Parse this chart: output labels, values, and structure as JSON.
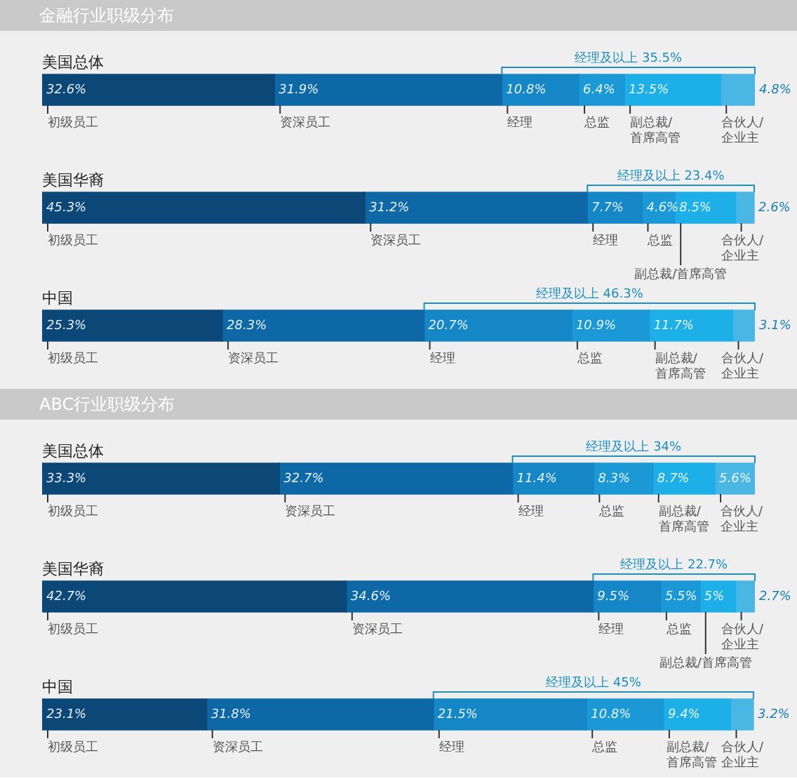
{
  "chart_data": [
    {
      "type": "bar",
      "title": "金融行业职级分布",
      "orientation": "horizontal",
      "stacked": true,
      "legend": false,
      "tick_labels": false,
      "categories": [
        "美国总体",
        "美国华裔",
        "中国"
      ],
      "series": [
        {
          "name": "初级员工",
          "color": "#0c4877",
          "values": [
            32.6,
            45.3,
            25.3
          ],
          "value_labels": [
            "32.6%",
            "45.3%",
            "25.3%"
          ]
        },
        {
          "name": "资深员工",
          "color": "#0f68a6",
          "values": [
            31.9,
            31.2,
            28.3
          ],
          "value_labels": [
            "31.9%",
            "31.2%",
            "28.3%"
          ]
        },
        {
          "name": "经理",
          "color": "#1586c6",
          "values": [
            10.8,
            7.7,
            20.7
          ],
          "value_labels": [
            "10.8%",
            "7.7%",
            "20.7%"
          ]
        },
        {
          "name": "总监",
          "color": "#1a99d6",
          "values": [
            6.4,
            4.6,
            10.9
          ],
          "value_labels": [
            "6.4%",
            "4.6%",
            "10.9%"
          ]
        },
        {
          "name": "副总裁/首席高管",
          "color": "#1cafe8",
          "values": [
            13.5,
            8.5,
            11.7
          ],
          "value_labels": [
            "13.5%",
            "8.5%",
            "11.7%"
          ]
        },
        {
          "name": "合伙人/企业主",
          "color": "#4ab6e4",
          "values": [
            4.8,
            2.6,
            3.1
          ],
          "value_labels": [
            "4.8%",
            "2.6%",
            "3.1%"
          ]
        }
      ],
      "annotations": [
        "经理及以上 35.5%",
        "经理及以上 23.4%",
        "经理及以上 46.3%"
      ]
    },
    {
      "type": "bar",
      "title": "ABC行业职级分布",
      "orientation": "horizontal",
      "stacked": true,
      "legend": false,
      "tick_labels": false,
      "categories": [
        "美国总体",
        "美国华裔",
        "中国"
      ],
      "series": [
        {
          "name": "初级员工",
          "color": "#0c4877",
          "values": [
            33.3,
            42.7,
            23.1
          ],
          "value_labels": [
            "33.3%",
            "42.7%",
            "23.1%"
          ]
        },
        {
          "name": "资深员工",
          "color": "#0f68a6",
          "values": [
            32.7,
            34.6,
            31.8
          ],
          "value_labels": [
            "32.7%",
            "34.6%",
            "31.8%"
          ]
        },
        {
          "name": "经理",
          "color": "#1586c6",
          "values": [
            11.4,
            9.5,
            21.5
          ],
          "value_labels": [
            "11.4%",
            "9.5%",
            "21.5%"
          ]
        },
        {
          "name": "总监",
          "color": "#1a99d6",
          "values": [
            8.3,
            5.5,
            10.8
          ],
          "value_labels": [
            "8.3%",
            "5.5%",
            "10.8%"
          ]
        },
        {
          "name": "副总裁/首席高管",
          "color": "#1cafe8",
          "values": [
            8.7,
            5,
            9.4
          ],
          "value_labels": [
            "8.7%",
            "5%",
            "9.4%"
          ]
        },
        {
          "name": "合伙人/企业主",
          "color": "#4ab6e4",
          "values": [
            5.6,
            2.7,
            3.2
          ],
          "value_labels": [
            "5.6%",
            "2.7%",
            "3.2%"
          ]
        }
      ],
      "annotations": [
        "经理及以上 34%",
        "经理及以上 22.7%",
        "经理及以上 45%"
      ]
    }
  ]
}
